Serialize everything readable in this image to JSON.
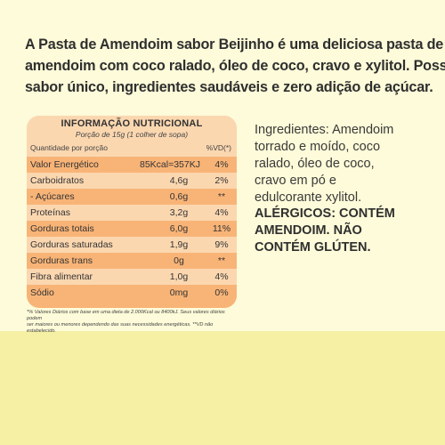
{
  "intro": {
    "lines": [
      "A Pasta de Amendoim sabor Beijinho é uma deliciosa pasta de",
      "amendoim com coco ralado, óleo de coco, cravo e xylitol.  Possui",
      "sabor único, ingredientes saudáveis e zero adição de açúcar."
    ]
  },
  "nutrition": {
    "title": "INFORMAÇÃO NUTRICIONAL",
    "portion": "Porção de 15g (1 colher de sopa)",
    "header_left": "Quantidade por porção",
    "header_right": "%VD(*)",
    "rows": [
      {
        "name": "Valor Energético",
        "amount": "85Kcal=357KJ",
        "vd": "4%"
      },
      {
        "name": "Carboidratos",
        "amount": "4,6g",
        "vd": "2%"
      },
      {
        "name": "- Açúcares",
        "amount": "0,6g",
        "vd": "**"
      },
      {
        "name": "Proteínas",
        "amount": "3,2g",
        "vd": "4%"
      },
      {
        "name": "Gorduras totais",
        "amount": "6,0g",
        "vd": "11%"
      },
      {
        "name": "Gorduras saturadas",
        "amount": "1,9g",
        "vd": "9%"
      },
      {
        "name": "Gorduras trans",
        "amount": "0g",
        "vd": "**"
      },
      {
        "name": "Fibra alimentar",
        "amount": "1,0g",
        "vd": "4%"
      },
      {
        "name": "Sódio",
        "amount": "0mg",
        "vd": "0%"
      }
    ],
    "footnote_lines": [
      "*% Valores Diários com base em uma dieta de 2.000Kcal ou 8400kJ. Seus valores diários podem",
      "ser maiores ou menores dependendo das suas necessidades energéticas. **VD não estabelecido."
    ]
  },
  "ingredients": {
    "lines": [
      "Ingredientes: Amendoim",
      "torrado e moído, coco",
      "ralado, óleo de coco,",
      "cravo em pó e",
      "edulcorante xylitol."
    ]
  },
  "allergens": {
    "lines": [
      "ALÉRGICOS: CONTÉM",
      "AMENDOIM. NÃO",
      "CONTÉM GLÚTEN."
    ]
  },
  "colors": {
    "background": "#fdfbd9",
    "bottom_band": "#f6f0a5",
    "table_light": "#fbd7b0",
    "table_dark": "#f8b477",
    "row_line": "#f3a35a"
  }
}
